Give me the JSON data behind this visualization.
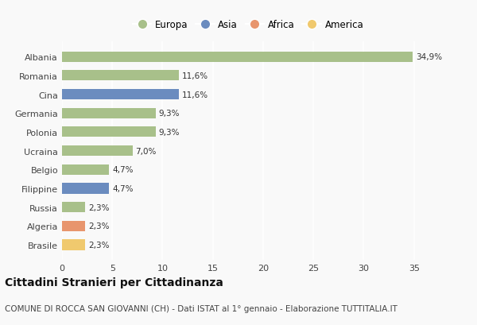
{
  "categories": [
    "Albania",
    "Romania",
    "Cina",
    "Germania",
    "Polonia",
    "Ucraina",
    "Belgio",
    "Filippine",
    "Russia",
    "Algeria",
    "Brasile"
  ],
  "values": [
    34.9,
    11.6,
    11.6,
    9.3,
    9.3,
    7.0,
    4.7,
    4.7,
    2.3,
    2.3,
    2.3
  ],
  "labels": [
    "34,9%",
    "11,6%",
    "11,6%",
    "9,3%",
    "9,3%",
    "7,0%",
    "4,7%",
    "4,7%",
    "2,3%",
    "2,3%",
    "2,3%"
  ],
  "continents": [
    "Europa",
    "Europa",
    "Asia",
    "Europa",
    "Europa",
    "Europa",
    "Europa",
    "Asia",
    "Europa",
    "Africa",
    "America"
  ],
  "colors": {
    "Europa": "#a8c08a",
    "Asia": "#6b8cbf",
    "Africa": "#e8956d",
    "America": "#f0c96e"
  },
  "legend_order": [
    "Europa",
    "Asia",
    "Africa",
    "America"
  ],
  "title": "Cittadini Stranieri per Cittadinanza",
  "subtitle": "COMUNE DI ROCCA SAN GIOVANNI (CH) - Dati ISTAT al 1° gennaio - Elaborazione TUTTITALIA.IT",
  "xlim": [
    0,
    37
  ],
  "xticks": [
    0,
    5,
    10,
    15,
    20,
    25,
    30,
    35
  ],
  "background_color": "#f9f9f9",
  "grid_color": "#ffffff",
  "bar_height": 0.55,
  "title_fontsize": 10,
  "subtitle_fontsize": 7.5,
  "label_fontsize": 7.5,
  "tick_fontsize": 8,
  "legend_fontsize": 8.5
}
